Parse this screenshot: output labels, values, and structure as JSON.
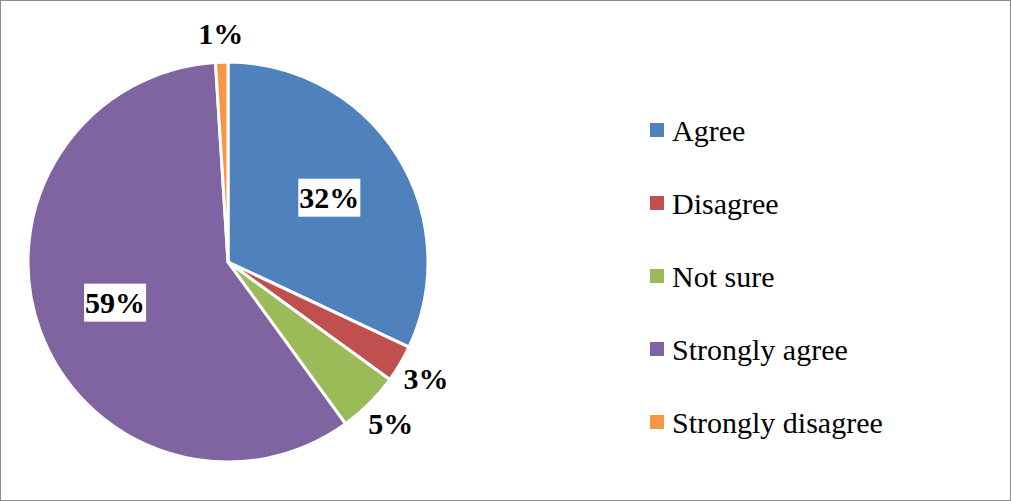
{
  "chart_data": {
    "type": "pie",
    "categories": [
      "Agree",
      "Disagree",
      "Not sure",
      "Strongly agree",
      "Strongly disagree"
    ],
    "values": [
      32,
      3,
      5,
      59,
      1
    ],
    "value_labels": [
      "32%",
      "3%",
      "5%",
      "59%",
      "1%"
    ],
    "colors": [
      "#4f81bd",
      "#c0504d",
      "#9bbb59",
      "#8064a2",
      "#f79646"
    ],
    "data_labels": true,
    "legend": "right"
  }
}
